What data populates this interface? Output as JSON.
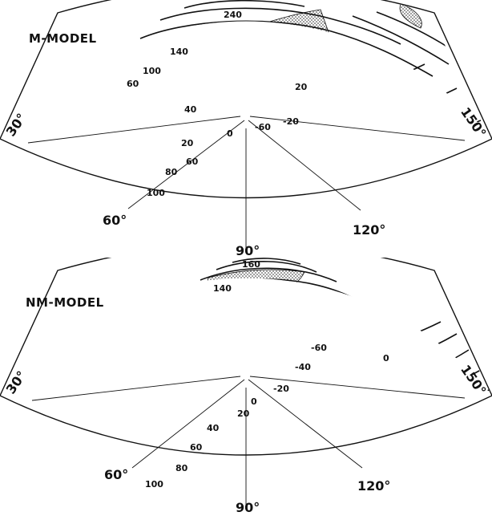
{
  "panels": [
    {
      "title": "M-MODEL",
      "contour_labels": [
        "240",
        "140",
        "100",
        "60",
        "40",
        "20",
        "0",
        "-60",
        "-20",
        "20",
        "60",
        "80",
        "100"
      ],
      "longitude_labels": [
        "30°",
        "60°",
        "90°",
        "120°",
        "150°"
      ]
    },
    {
      "title": "NM-MODEL",
      "contour_labels": [
        "160",
        "140",
        "-60",
        "-40",
        "-20",
        "0",
        "20",
        "40",
        "60",
        "80",
        "100",
        "0"
      ],
      "longitude_labels": [
        "30°",
        "60°",
        "90°",
        "120°",
        "150°"
      ]
    }
  ],
  "colors": {
    "ink": "#111111",
    "stipple": "#1a1a1a",
    "background": "#ffffff"
  },
  "map_type": "polar sector projection with contour lines and stippled regions"
}
